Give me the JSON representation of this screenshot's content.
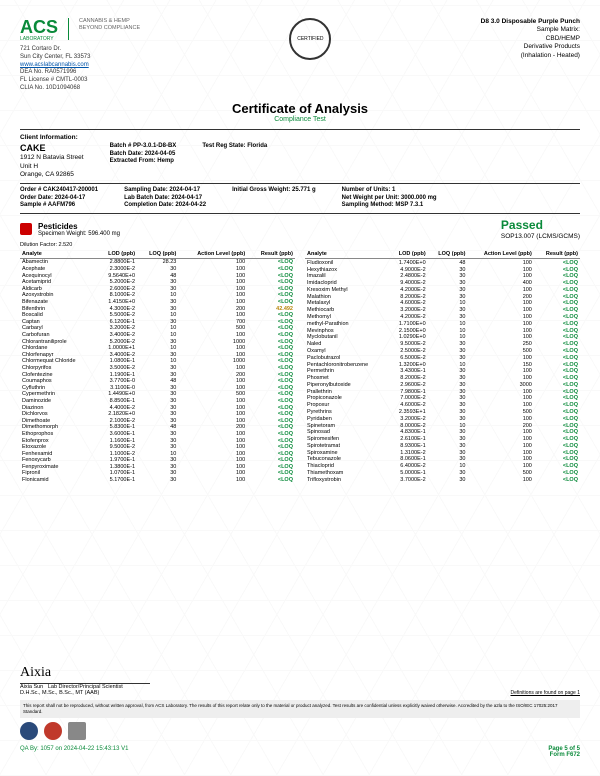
{
  "lab": {
    "name": "ACS",
    "sub": "LABORATORY",
    "tag1": "CANNABIS & HEMP",
    "tag2": "BEYOND COMPLIANCE",
    "addr1": "721 Cortaro Dr.",
    "addr2": "Sun City Center, FL 33573",
    "url": "www.acslabcannabis.com",
    "dea": "DEA No. RA0571996",
    "fl": "FL License # CMTL-0003",
    "clia": "CLIA No. 10D1094068"
  },
  "product": {
    "title": "D8 3.0 Disposable Purple Punch",
    "matrix_lbl": "Sample Matrix:",
    "matrix": "CBD/HEMP",
    "deriv": "Derivative Products",
    "inhal": "(Inhalation - Heated)"
  },
  "coa": {
    "title": "Certificate of Analysis",
    "sub": "Compliance Test"
  },
  "cert": "CERTIFIED",
  "client": {
    "lbl": "Client Information:",
    "name": "CAKE",
    "addr1": "1912 N Batavia Street",
    "addr2": "Unit H",
    "addr3": "Orange, CA 92865"
  },
  "batch": {
    "b1": "Batch # PP-3.0.1-D8-BX",
    "b2": "Batch Date: 2024-04-05",
    "b3": "Extracted From: Hemp",
    "reg": "Test Reg State: Florida"
  },
  "order": {
    "o1": "Order # CAK240417-200001",
    "o2": "Order Date: 2024-04-17",
    "o3": "Sample # AAFM796",
    "s1": "Sampling Date: 2024-04-17",
    "s2": "Lab Batch Date: 2024-04-17",
    "s3": "Completion Date: 2024-04-22",
    "g1": "Initial Gross Weight: 25.771 g",
    "u1": "Number of Units: 1",
    "u2": "Net Weight per Unit: 3000.000 mg",
    "u3": "Sampling Method: MSP 7.3.1"
  },
  "pest": {
    "title": "Pesticides",
    "spec": "Specimen Weight: 596.400 mg",
    "passed": "Passed",
    "sop": "SOP13.007 (LCMS/GCMS)",
    "dil": "Dilution Factor: 2.520",
    "h": [
      "Analyte",
      "LOD (ppb)",
      "LOQ (ppb)",
      "Action Level (ppb)",
      "Result (ppb)"
    ]
  },
  "left": [
    [
      "Abamectin",
      "2.8800E-1",
      "28.23",
      "100",
      "<LOQ"
    ],
    [
      "Acephate",
      "2.3000E-2",
      "30",
      "100",
      "<LOQ"
    ],
    [
      "Acequinocyl",
      "9.5640E+0",
      "48",
      "100",
      "<LOQ"
    ],
    [
      "Acetamiprid",
      "5.2000E-2",
      "30",
      "100",
      "<LOQ"
    ],
    [
      "Aldicarb",
      "2.6000E-2",
      "30",
      "100",
      "<LOQ"
    ],
    [
      "Azoxystrobin",
      "8.1000E-2",
      "10",
      "100",
      "<LOQ"
    ],
    [
      "Bifenazate",
      "1.4150E+0",
      "30",
      "100",
      "<LOQ"
    ],
    [
      "Bifenthrin",
      "4.3000E-2",
      "30",
      "200",
      "42.492"
    ],
    [
      "Boscalid",
      "5.5000E-2",
      "10",
      "100",
      "<LOQ"
    ],
    [
      "Captan",
      "6.1200E-1",
      "30",
      "700",
      "<LOQ"
    ],
    [
      "Carbaryl",
      "3.2000E-2",
      "10",
      "500",
      "<LOQ"
    ],
    [
      "Carbofuran",
      "3.4000E-2",
      "10",
      "100",
      "<LOQ"
    ],
    [
      "Chlorantraniliprole",
      "5.2000E-2",
      "30",
      "1000",
      "<LOQ"
    ],
    [
      "Chlordane",
      "1.0000E+1",
      "10",
      "100",
      "<LOQ"
    ],
    [
      "Chlorfenapyr",
      "3.4000E-2",
      "30",
      "100",
      "<LOQ"
    ],
    [
      "Chlormequat Chloride",
      "1.0800E-1",
      "10",
      "1000",
      "<LOQ"
    ],
    [
      "Chlorpyrifos",
      "3.5000E-2",
      "30",
      "100",
      "<LOQ"
    ],
    [
      "Clofentezine",
      "1.1900E-1",
      "30",
      "200",
      "<LOQ"
    ],
    [
      "Coumaphos",
      "3.7700E-0",
      "48",
      "100",
      "<LOQ"
    ],
    [
      "Cyfluthrin",
      "3.1100E-0",
      "30",
      "100",
      "<LOQ"
    ],
    [
      "Cypermethrin",
      "1.4490E+0",
      "30",
      "500",
      "<LOQ"
    ],
    [
      "Daminozide",
      "8.8500E-1",
      "30",
      "100",
      "<LOQ"
    ],
    [
      "Diazinon",
      "4.4000E-2",
      "30",
      "100",
      "<LOQ"
    ],
    [
      "Dichlorvos",
      "2.1820E+0",
      "30",
      "100",
      "<LOQ"
    ],
    [
      "Dimethoate",
      "2.1000E-2",
      "30",
      "100",
      "<LOQ"
    ],
    [
      "Dimethomorph",
      "5.8300E-1",
      "48",
      "200",
      "<LOQ"
    ],
    [
      "Ethoprophos",
      "3.6000E-1",
      "30",
      "100",
      "<LOQ"
    ],
    [
      "Etofenprox",
      "1.1600E-1",
      "30",
      "100",
      "<LOQ"
    ],
    [
      "Etoxazole",
      "9.5000E-2",
      "30",
      "100",
      "<LOQ"
    ],
    [
      "Fenhexamid",
      "1.1000E-2",
      "10",
      "100",
      "<LOQ"
    ],
    [
      "Fenoxycarb",
      "1.9700E-1",
      "30",
      "100",
      "<LOQ"
    ],
    [
      "Fenpyroximate",
      "1.3800E-1",
      "30",
      "100",
      "<LOQ"
    ],
    [
      "Fipronil",
      "1.0700E-1",
      "30",
      "100",
      "<LOQ"
    ],
    [
      "Flonicamid",
      "5.1700E-1",
      "30",
      "100",
      "<LOQ"
    ]
  ],
  "right": [
    [
      "Fludioxonil",
      "1.7400E+0",
      "48",
      "100",
      "<LOQ"
    ],
    [
      "Hexythiazox",
      "4.9000E-2",
      "30",
      "100",
      "<LOQ"
    ],
    [
      "Imazalil",
      "2.4800E-2",
      "30",
      "100",
      "<LOQ"
    ],
    [
      "Imidacloprid",
      "9.4000E-2",
      "30",
      "400",
      "<LOQ"
    ],
    [
      "Kresoxim Methyl",
      "4.2000E-2",
      "30",
      "100",
      "<LOQ"
    ],
    [
      "Malathion",
      "8.2000E-2",
      "30",
      "200",
      "<LOQ"
    ],
    [
      "Metalaxyl",
      "4.6000E-2",
      "10",
      "100",
      "<LOQ"
    ],
    [
      "Methiocarb",
      "3.2000E-2",
      "30",
      "100",
      "<LOQ"
    ],
    [
      "Methomyl",
      "4.2000E-2",
      "30",
      "100",
      "<LOQ"
    ],
    [
      "methyl-Parathion",
      "1.7100E+0",
      "10",
      "100",
      "<LOQ"
    ],
    [
      "Mevinphos",
      "2.1500E+0",
      "10",
      "100",
      "<LOQ"
    ],
    [
      "Myclobutanil",
      "1.0290E+0",
      "10",
      "100",
      "<LOQ"
    ],
    [
      "Naled",
      "9.5000E-2",
      "30",
      "250",
      "<LOQ"
    ],
    [
      "Oxamyl",
      "2.5000E-2",
      "30",
      "500",
      "<LOQ"
    ],
    [
      "Paclobutrazol",
      "6.5000E-2",
      "30",
      "100",
      "<LOQ"
    ],
    [
      "Pentachloronitrobenzene",
      "1.3200E+0",
      "10",
      "150",
      "<LOQ"
    ],
    [
      "Permethrin",
      "3.4300E-1",
      "30",
      "100",
      "<LOQ"
    ],
    [
      "Phosmet",
      "8.2000E-2",
      "30",
      "100",
      "<LOQ"
    ],
    [
      "Piperonylbutoxide",
      "2.9600E-2",
      "30",
      "3000",
      "<LOQ"
    ],
    [
      "Prallethrin",
      "7.9800E-1",
      "30",
      "100",
      "<LOQ"
    ],
    [
      "Propiconazole",
      "7.0000E-2",
      "30",
      "100",
      "<LOQ"
    ],
    [
      "Propoxur",
      "4.6000E-2",
      "30",
      "100",
      "<LOQ"
    ],
    [
      "Pyrethrins",
      "2.3593E+1",
      "30",
      "500",
      "<LOQ"
    ],
    [
      "Pyridaben",
      "3.2000E-2",
      "30",
      "100",
      "<LOQ"
    ],
    [
      "Spinetoram",
      "8.0000E-2",
      "10",
      "200",
      "<LOQ"
    ],
    [
      "Spinosad",
      "4.8300E-1",
      "30",
      "100",
      "<LOQ"
    ],
    [
      "Spiromesifen",
      "2.6100E-1",
      "30",
      "100",
      "<LOQ"
    ],
    [
      "Spirotetramat",
      "8.9300E-1",
      "30",
      "100",
      "<LOQ"
    ],
    [
      "Spiroxamine",
      "1.3100E-2",
      "30",
      "100",
      "<LOQ"
    ],
    [
      "Tebuconazole",
      "8.0600E-1",
      "30",
      "100",
      "<LOQ"
    ],
    [
      "Thiacloprid",
      "6.4000E-2",
      "10",
      "100",
      "<LOQ"
    ],
    [
      "Thiamethoxam",
      "5.0000E-1",
      "30",
      "500",
      "<LOQ"
    ],
    [
      "Trifloxystrobin",
      "3.7000E-2",
      "30",
      "100",
      "<LOQ"
    ]
  ],
  "sig": {
    "name": "Aixia Sun",
    "role": "Lab Director/Principal Scientist",
    "cred": "D.H.Sc., M.Sc., B.Sc., MT (AAB)"
  },
  "def": "Definitions are found on page 1",
  "disclaimer": "This report shall not be reproduced, without written approval, from ACS Laboratory. The results of this report relate only to the material or product analyzed. Test results are confidential unless explicitly waived otherwise. Accredited by the a2la to the ISO/IEC 17025:2017 Standard.",
  "qa": "QA By: 1057 on 2024-04-22 15:43:13 V1",
  "page": "Page 5 of 5",
  "form": "Form F672"
}
